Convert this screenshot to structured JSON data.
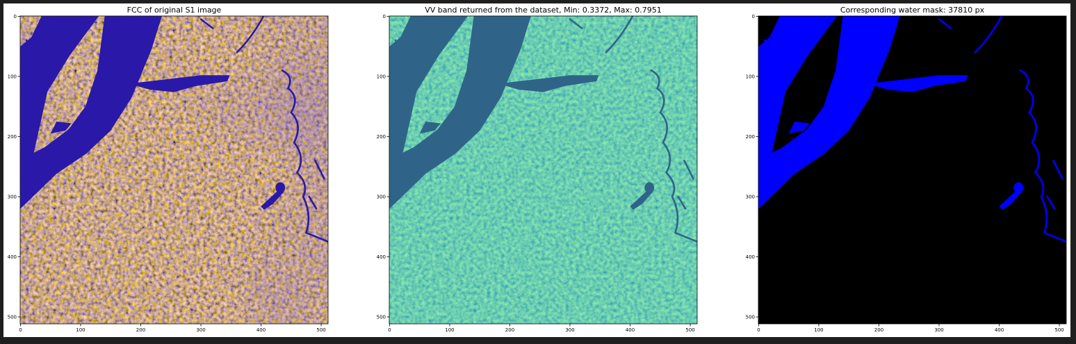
{
  "chart_data": [
    {
      "type": "image",
      "title": "FCC of original S1 image",
      "xlim": [
        -0.5,
        511.5
      ],
      "ylim": [
        511.5,
        -0.5
      ],
      "xticks": [
        0,
        100,
        200,
        300,
        400,
        500
      ],
      "yticks": [
        0,
        100,
        200,
        300,
        400,
        500
      ]
    },
    {
      "type": "image",
      "title": "VV band returned from the dataset, Min: 0.3372, Max: 0.7951",
      "xlim": [
        -0.5,
        511.5
      ],
      "ylim": [
        511.5,
        -0.5
      ],
      "xticks": [
        0,
        100,
        200,
        300,
        400,
        500
      ],
      "yticks": [
        0,
        100,
        200,
        300,
        400,
        500
      ]
    },
    {
      "type": "image",
      "title": "Corresponding water mask: 37810 px",
      "xlim": [
        -0.5,
        511.5
      ],
      "ylim": [
        511.5,
        -0.5
      ],
      "xticks": [
        0,
        100,
        200,
        300,
        400,
        500
      ],
      "yticks": [
        0,
        100,
        200,
        300,
        400,
        500
      ]
    }
  ]
}
